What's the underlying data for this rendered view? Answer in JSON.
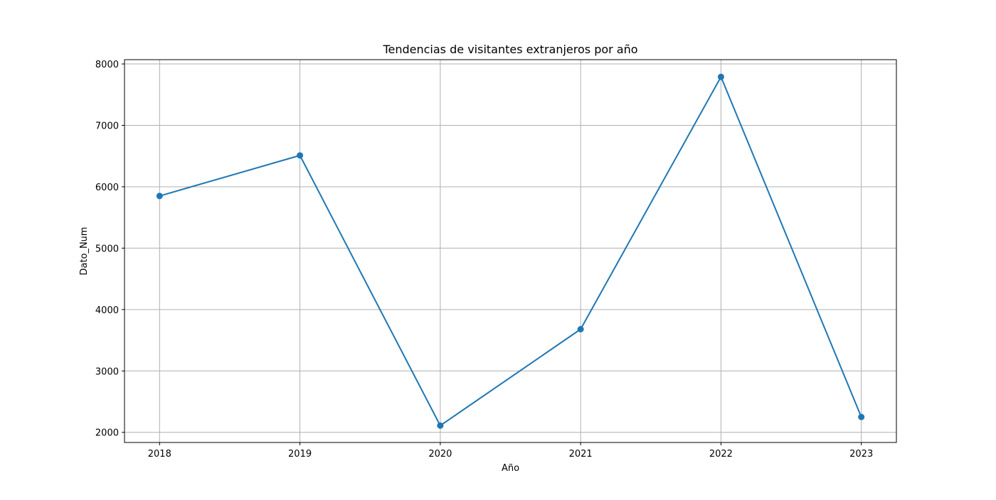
{
  "chart_data": {
    "type": "line",
    "title": "Tendencias de visitantes extranjeros por año",
    "xlabel": "Año",
    "ylabel": "Dato_Num",
    "x": [
      2018,
      2019,
      2020,
      2021,
      2022,
      2023
    ],
    "x_tick_labels": [
      "2018",
      "2019",
      "2020",
      "2021",
      "2022",
      "2023"
    ],
    "series": [
      {
        "values": [
          5850,
          6510,
          2110,
          3680,
          7790,
          2250
        ],
        "color": "#1f77b4",
        "marker": "circle"
      }
    ],
    "xlim": [
      2017.75,
      2023.25
    ],
    "ylim": [
      1835,
      8070
    ],
    "y_ticks": [
      2000,
      3000,
      4000,
      5000,
      6000,
      7000,
      8000
    ],
    "y_tick_labels": [
      "2000",
      "3000",
      "4000",
      "5000",
      "6000",
      "7000",
      "8000"
    ],
    "grid": true,
    "legend": "none",
    "colors": {
      "line": "#1f77b4",
      "grid": "#b0b0b0",
      "axes": "#000000"
    }
  }
}
